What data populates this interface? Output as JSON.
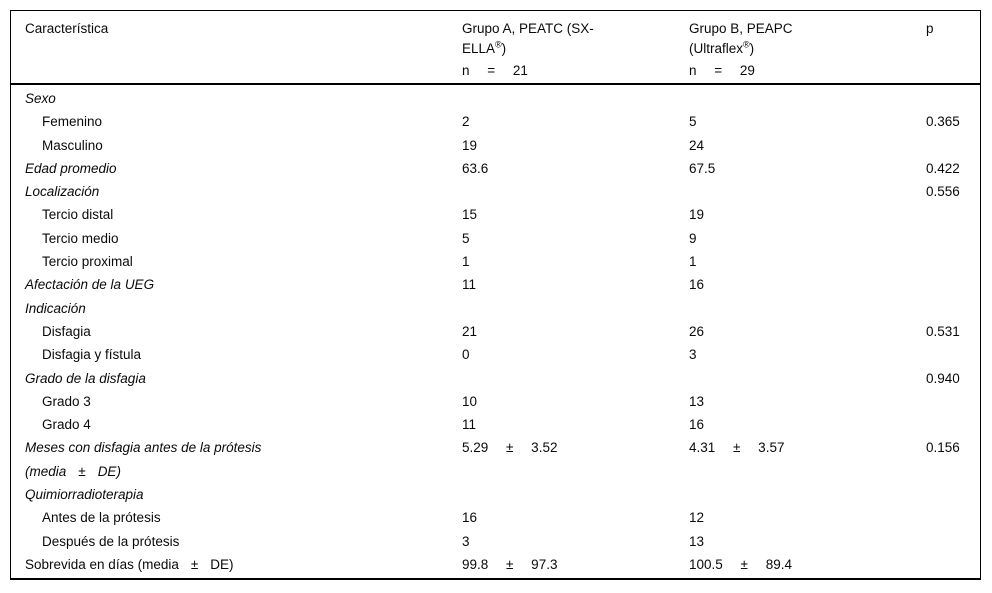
{
  "table": {
    "header": {
      "col1": "Característica",
      "col2": {
        "line1": "Grupo A, PEATC (SX-",
        "line2_pre": "ELLA",
        "line2_sup": "®",
        "line2_post": ")",
        "n_line": "n = 21"
      },
      "col3": {
        "line1": "Grupo B, PEAPC",
        "line2_pre": "(Ultraflex",
        "line2_sup": "®",
        "line2_post": ")",
        "n_line": "n = 29"
      },
      "col4": "p"
    },
    "rows": [
      {
        "label": "Sexo",
        "italic": true
      },
      {
        "label": "Femenino",
        "indent": true,
        "a": "2",
        "b": "5",
        "p": "0.365"
      },
      {
        "label": "Masculino",
        "indent": true,
        "a": "19",
        "b": "24"
      },
      {
        "label": "Edad promedio",
        "italic": true,
        "a": "63.6",
        "b": "67.5",
        "p": "0.422"
      },
      {
        "label": "Localización",
        "italic": true,
        "p": "0.556"
      },
      {
        "label": "Tercio distal",
        "indent": true,
        "a": "15",
        "b": "19"
      },
      {
        "label": "Tercio medio",
        "indent": true,
        "a": "5",
        "b": "9"
      },
      {
        "label": "Tercio proximal",
        "indent": true,
        "a": "1",
        "b": "1"
      },
      {
        "label": "Afectación de la UEG",
        "italic": true,
        "a": "11",
        "b": "16"
      },
      {
        "label": "Indicación",
        "italic": true
      },
      {
        "label": "Disfagia",
        "indent": true,
        "a": "21",
        "b": "26",
        "p": "0.531"
      },
      {
        "label": "Disfagia y fístula",
        "indent": true,
        "a": "0",
        "b": "3"
      },
      {
        "label": "Grado de la disfagia",
        "italic": true,
        "p": "0.940"
      },
      {
        "label": "Grado 3",
        "indent": true,
        "a": "10",
        "b": "13"
      },
      {
        "label": "Grado 4",
        "indent": true,
        "a": "11",
        "b": "16"
      },
      {
        "label": "Meses con disfagia antes de la prótesis",
        "italic": true,
        "line2": "(media",
        "line2_pm": "±",
        "line2_tail": "DE)",
        "a": "5.29 ± 3.52",
        "b": "4.31 ± 3.57",
        "p": "0.156"
      },
      {
        "label": "Quimiorradioterapia",
        "italic": true
      },
      {
        "label": "Antes de la prótesis",
        "indent": true,
        "a": "16",
        "b": "12"
      },
      {
        "label": "Después de la prótesis",
        "indent": true,
        "a": "3",
        "b": "13"
      },
      {
        "label": "Sobrevida en días (media",
        "pm": "±",
        "tail": "DE)",
        "a": "99.8 ± 97.3",
        "b": "100.5 ± 89.4"
      }
    ]
  }
}
